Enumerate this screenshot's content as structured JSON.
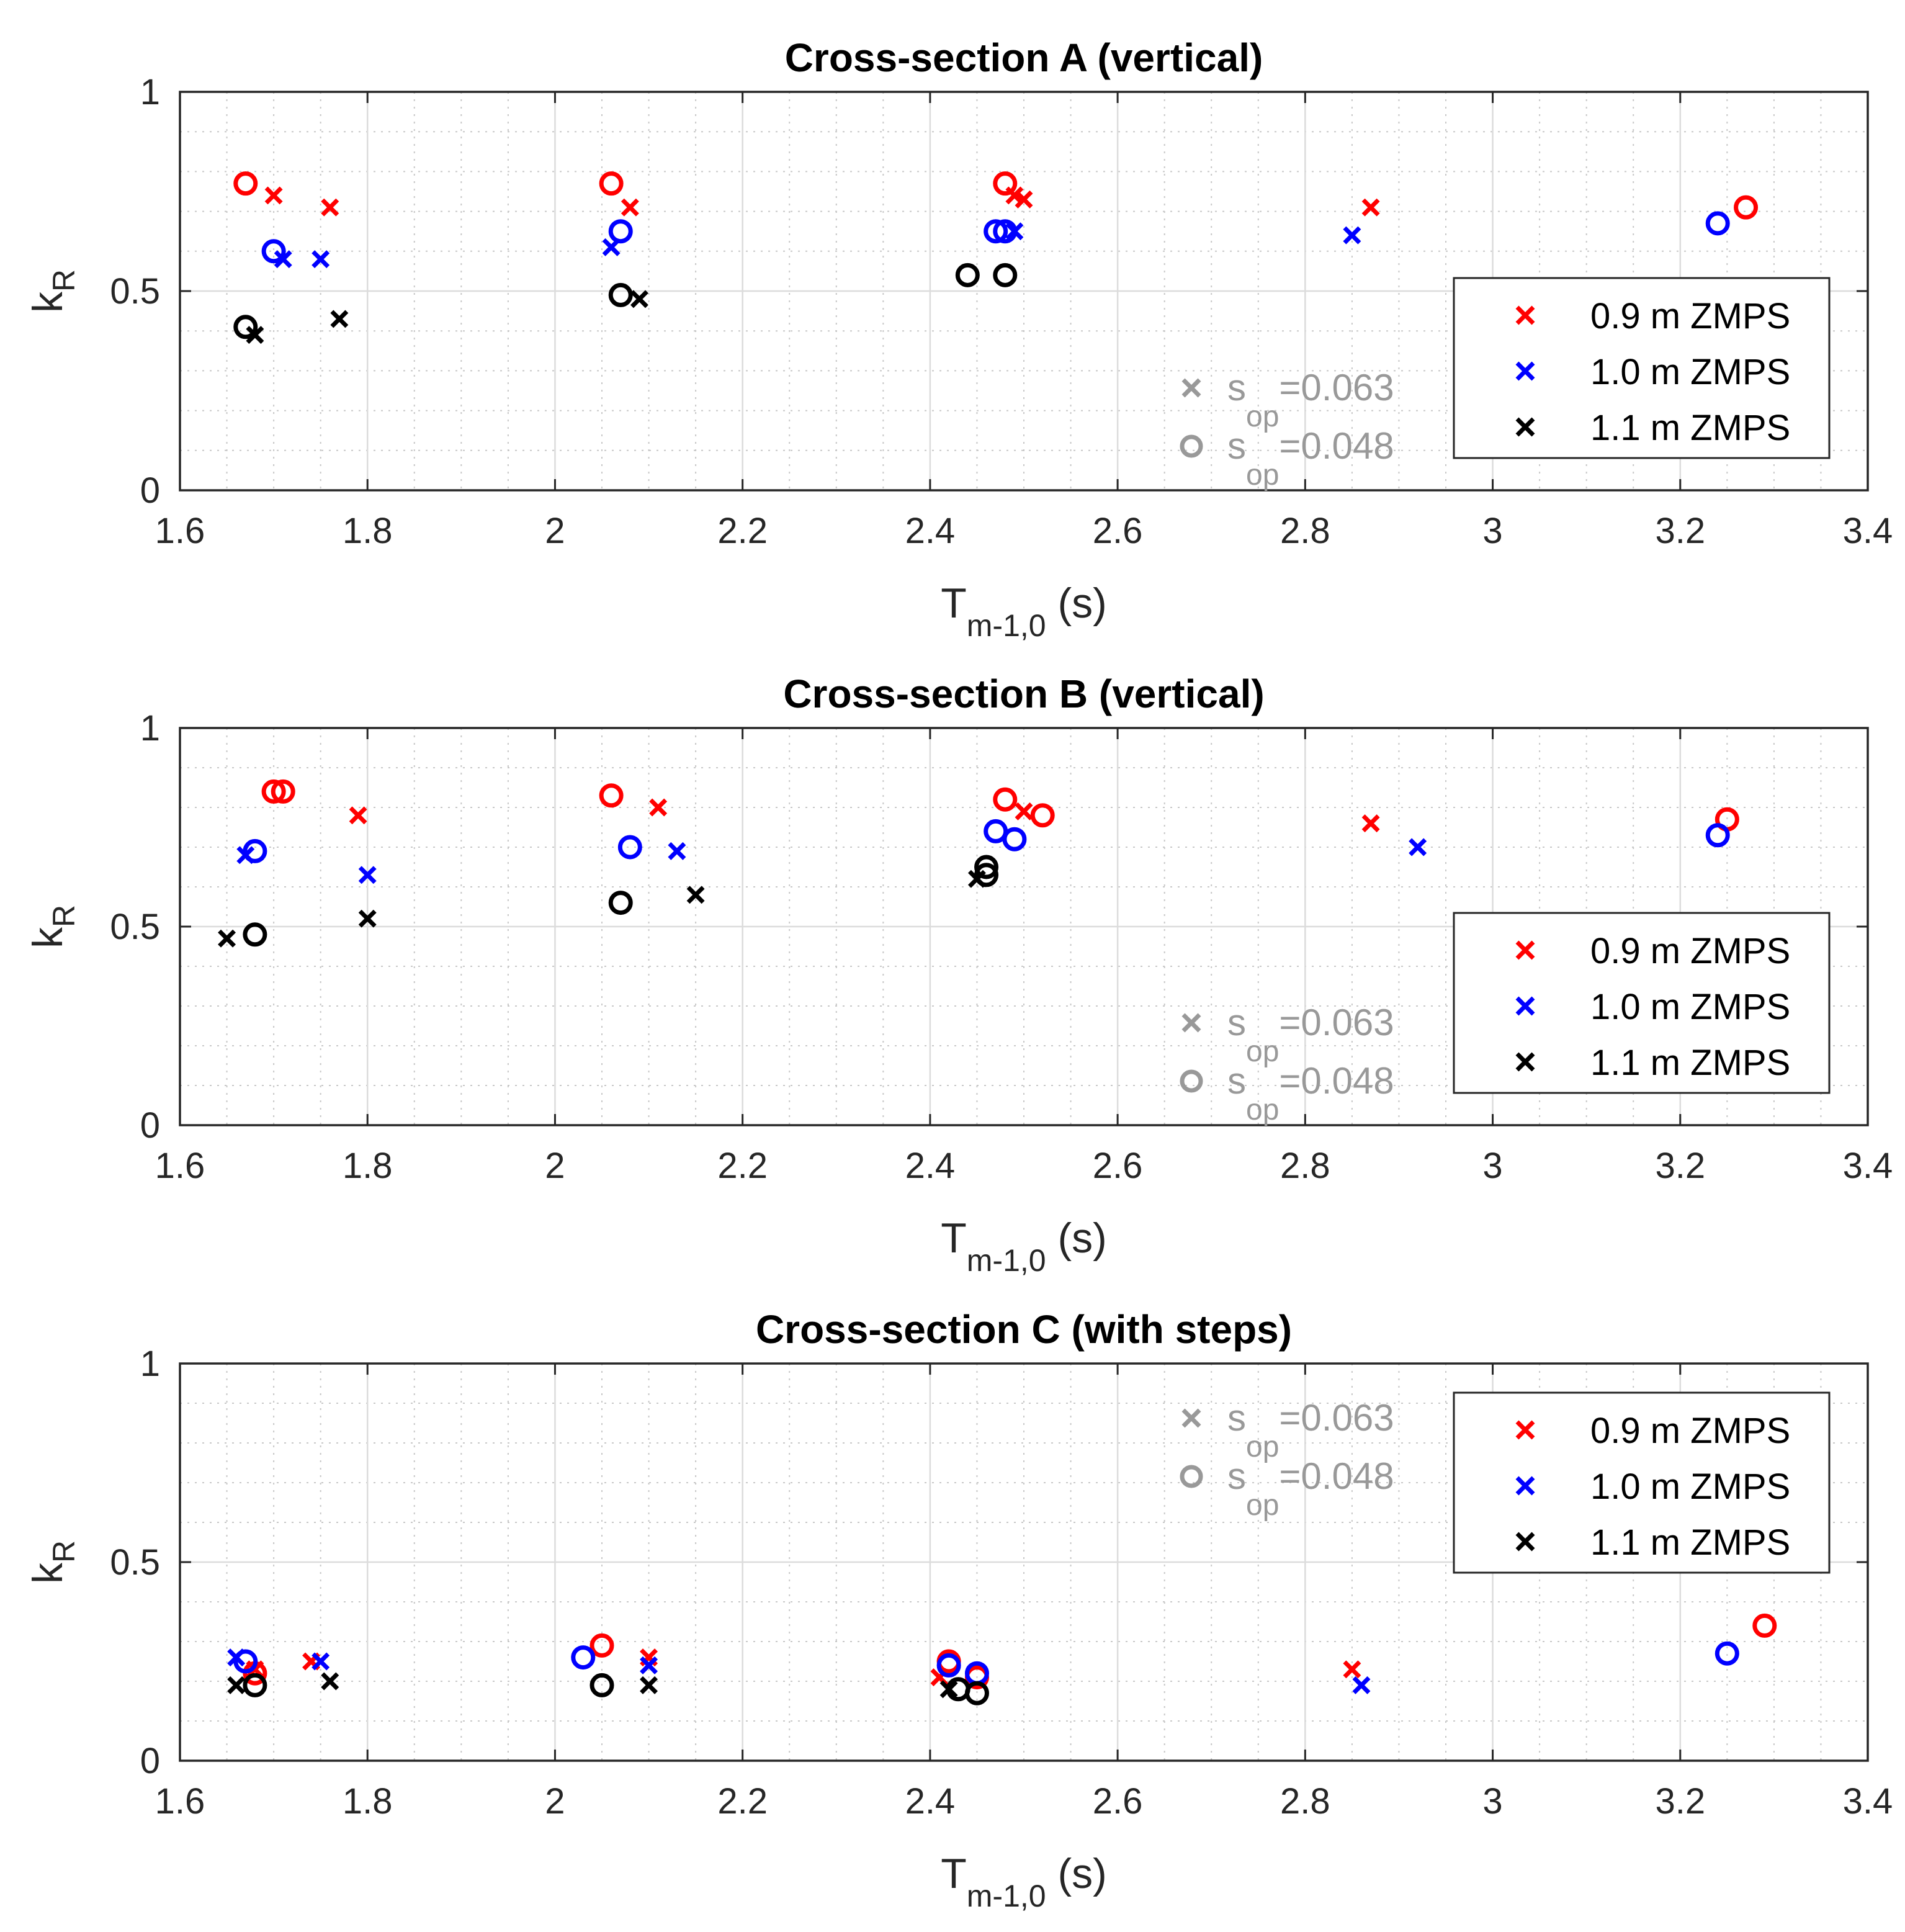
{
  "colors": {
    "red": "#ff0000",
    "blue": "#0000ff",
    "black": "#000000",
    "annotation": "#999999"
  },
  "legend": {
    "entries": [
      "0.9 m ZMPS",
      "1.0 m ZMPS",
      "1.1 m ZMPS"
    ],
    "series_colors": [
      "red",
      "blue",
      "black"
    ]
  },
  "annotation": {
    "x_marker": {
      "text_s": "s",
      "text_sub": "op",
      "text_val": "=0.063"
    },
    "o_marker": {
      "text_s": "s",
      "text_sub": "op",
      "text_val": "=0.048"
    }
  },
  "axis_labels": {
    "xlabel_main": "T",
    "xlabel_sub": "m-1,0",
    "xlabel_unit": " (s)",
    "ylabel_main": "k",
    "ylabel_sub": "R"
  },
  "chart_data": [
    {
      "type": "scatter",
      "title": "Cross-section  A (vertical)",
      "xlim": [
        1.6,
        3.4
      ],
      "ylim": [
        0,
        1
      ],
      "xticks": [
        "1.6",
        "1.8",
        "2",
        "2.2",
        "2.4",
        "2.6",
        "2.8",
        "3",
        "3.2",
        "3.4"
      ],
      "yticks": [
        "0",
        "0.5",
        "1"
      ],
      "legend_position": "lower-right",
      "annotation_position": "lower-middle",
      "series": [
        {
          "name": "0.9 m ZMPS",
          "color": "red",
          "x_points": [
            [
              1.7,
              0.74
            ],
            [
              1.76,
              0.71
            ],
            [
              2.08,
              0.71
            ],
            [
              2.49,
              0.74
            ],
            [
              2.5,
              0.73
            ],
            [
              2.87,
              0.71
            ]
          ],
          "o_points": [
            [
              1.67,
              0.77
            ],
            [
              2.06,
              0.77
            ],
            [
              2.48,
              0.77
            ],
            [
              3.27,
              0.71
            ]
          ]
        },
        {
          "name": "1.0 m ZMPS",
          "color": "blue",
          "x_points": [
            [
              1.71,
              0.58
            ],
            [
              1.75,
              0.58
            ],
            [
              2.06,
              0.61
            ],
            [
              2.49,
              0.65
            ],
            [
              2.85,
              0.64
            ]
          ],
          "o_points": [
            [
              1.7,
              0.6
            ],
            [
              2.07,
              0.65
            ],
            [
              2.47,
              0.65
            ],
            [
              2.48,
              0.65
            ],
            [
              3.24,
              0.67
            ]
          ]
        },
        {
          "name": "1.1 m ZMPS",
          "color": "black",
          "x_points": [
            [
              1.68,
              0.39
            ],
            [
              1.77,
              0.43
            ],
            [
              2.09,
              0.48
            ]
          ],
          "o_points": [
            [
              1.67,
              0.41
            ],
            [
              2.07,
              0.49
            ],
            [
              2.44,
              0.54
            ],
            [
              2.48,
              0.54
            ]
          ]
        }
      ]
    },
    {
      "type": "scatter",
      "title": "Cross-section B (vertical)",
      "xlim": [
        1.6,
        3.4
      ],
      "ylim": [
        0,
        1
      ],
      "xticks": [
        "1.6",
        "1.8",
        "2",
        "2.2",
        "2.4",
        "2.6",
        "2.8",
        "3",
        "3.2",
        "3.4"
      ],
      "yticks": [
        "0",
        "0.5",
        "1"
      ],
      "legend_position": "lower-right",
      "annotation_position": "lower-middle",
      "series": [
        {
          "name": "0.9 m ZMPS",
          "color": "red",
          "x_points": [
            [
              1.79,
              0.78
            ],
            [
              2.11,
              0.8
            ],
            [
              2.5,
              0.79
            ],
            [
              2.87,
              0.76
            ]
          ],
          "o_points": [
            [
              1.7,
              0.84
            ],
            [
              1.71,
              0.84
            ],
            [
              2.06,
              0.83
            ],
            [
              2.48,
              0.82
            ],
            [
              2.52,
              0.78
            ],
            [
              3.25,
              0.77
            ]
          ]
        },
        {
          "name": "1.0 m ZMPS",
          "color": "blue",
          "x_points": [
            [
              1.67,
              0.68
            ],
            [
              1.8,
              0.63
            ],
            [
              2.13,
              0.69
            ],
            [
              2.92,
              0.7
            ]
          ],
          "o_points": [
            [
              1.68,
              0.69
            ],
            [
              2.08,
              0.7
            ],
            [
              2.47,
              0.74
            ],
            [
              2.49,
              0.72
            ],
            [
              3.24,
              0.73
            ]
          ]
        },
        {
          "name": "1.1 m ZMPS",
          "color": "black",
          "x_points": [
            [
              1.65,
              0.47
            ],
            [
              1.8,
              0.52
            ],
            [
              2.15,
              0.58
            ],
            [
              2.45,
              0.62
            ]
          ],
          "o_points": [
            [
              1.68,
              0.48
            ],
            [
              2.07,
              0.56
            ],
            [
              2.46,
              0.65
            ],
            [
              2.46,
              0.63
            ]
          ]
        }
      ]
    },
    {
      "type": "scatter",
      "title": "Cross-section C (with steps)",
      "xlim": [
        1.6,
        3.4
      ],
      "ylim": [
        0,
        1
      ],
      "xticks": [
        "1.6",
        "1.8",
        "2",
        "2.2",
        "2.4",
        "2.6",
        "2.8",
        "3",
        "3.2",
        "3.4"
      ],
      "yticks": [
        "0",
        "0.5",
        "1"
      ],
      "legend_position": "upper-right",
      "annotation_position": "upper-middle",
      "series": [
        {
          "name": "0.9 m ZMPS",
          "color": "red",
          "x_points": [
            [
              1.68,
              0.23
            ],
            [
              1.74,
              0.25
            ],
            [
              2.1,
              0.26
            ],
            [
              2.41,
              0.21
            ],
            [
              2.85,
              0.23
            ]
          ],
          "o_points": [
            [
              1.68,
              0.22
            ],
            [
              2.05,
              0.29
            ],
            [
              2.42,
              0.25
            ],
            [
              2.45,
              0.21
            ],
            [
              3.29,
              0.34
            ]
          ]
        },
        {
          "name": "1.0 m ZMPS",
          "color": "blue",
          "x_points": [
            [
              1.66,
              0.26
            ],
            [
              1.75,
              0.25
            ],
            [
              2.1,
              0.24
            ],
            [
              2.86,
              0.19
            ]
          ],
          "o_points": [
            [
              1.67,
              0.25
            ],
            [
              2.03,
              0.26
            ],
            [
              2.42,
              0.24
            ],
            [
              2.45,
              0.22
            ],
            [
              3.25,
              0.27
            ]
          ]
        },
        {
          "name": "1.1 m ZMPS",
          "color": "black",
          "x_points": [
            [
              1.66,
              0.19
            ],
            [
              1.76,
              0.2
            ],
            [
              2.1,
              0.19
            ],
            [
              2.42,
              0.18
            ]
          ],
          "o_points": [
            [
              1.68,
              0.19
            ],
            [
              2.05,
              0.19
            ],
            [
              2.43,
              0.18
            ],
            [
              2.45,
              0.17
            ]
          ]
        }
      ]
    }
  ]
}
